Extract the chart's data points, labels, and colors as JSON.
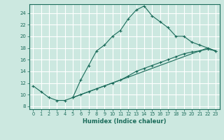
{
  "xlabel": "Humidex (Indice chaleur)",
  "xlim": [
    -0.5,
    23.5
  ],
  "ylim": [
    7.5,
    25.5
  ],
  "yticks": [
    8,
    10,
    12,
    14,
    16,
    18,
    20,
    22,
    24
  ],
  "xticks": [
    0,
    1,
    2,
    3,
    4,
    5,
    6,
    7,
    8,
    9,
    10,
    11,
    12,
    13,
    14,
    15,
    16,
    17,
    18,
    19,
    20,
    21,
    22,
    23
  ],
  "bg_color": "#cce8e0",
  "line_color": "#1a6b5a",
  "grid_color": "#ffffff",
  "line1_x": [
    0,
    1,
    2,
    3,
    4,
    5,
    6,
    7,
    8,
    9,
    10,
    11,
    12,
    13,
    14,
    15,
    16,
    17,
    18,
    19,
    20,
    21,
    22,
    23
  ],
  "line1_y": [
    11.5,
    10.5,
    9.5,
    9.0,
    9.0,
    9.5,
    12.5,
    15.0,
    17.5,
    18.5,
    20.0,
    21.0,
    23.0,
    24.5,
    25.2,
    23.5,
    22.5,
    21.5,
    20.0,
    20.0,
    19.0,
    18.5,
    18.0,
    17.5
  ],
  "line2_x": [
    5,
    6,
    7,
    8,
    9,
    10,
    11,
    12,
    13,
    14,
    15,
    16,
    17,
    18,
    19,
    20,
    21,
    22,
    23
  ],
  "line2_y": [
    9.5,
    10.0,
    10.5,
    11.0,
    11.5,
    12.0,
    12.5,
    13.2,
    14.0,
    14.5,
    15.0,
    15.5,
    16.0,
    16.5,
    17.0,
    17.3,
    17.5,
    17.8,
    17.5
  ],
  "line3_x": [
    5,
    6,
    7,
    8,
    9,
    10,
    11,
    12,
    13,
    14,
    15,
    16,
    17,
    18,
    19,
    20,
    21,
    22,
    23
  ],
  "line3_y": [
    9.5,
    10.0,
    10.5,
    11.0,
    11.5,
    12.0,
    12.5,
    13.0,
    13.5,
    14.0,
    14.5,
    15.0,
    15.5,
    16.0,
    16.5,
    17.0,
    17.5,
    18.0,
    17.5
  ]
}
